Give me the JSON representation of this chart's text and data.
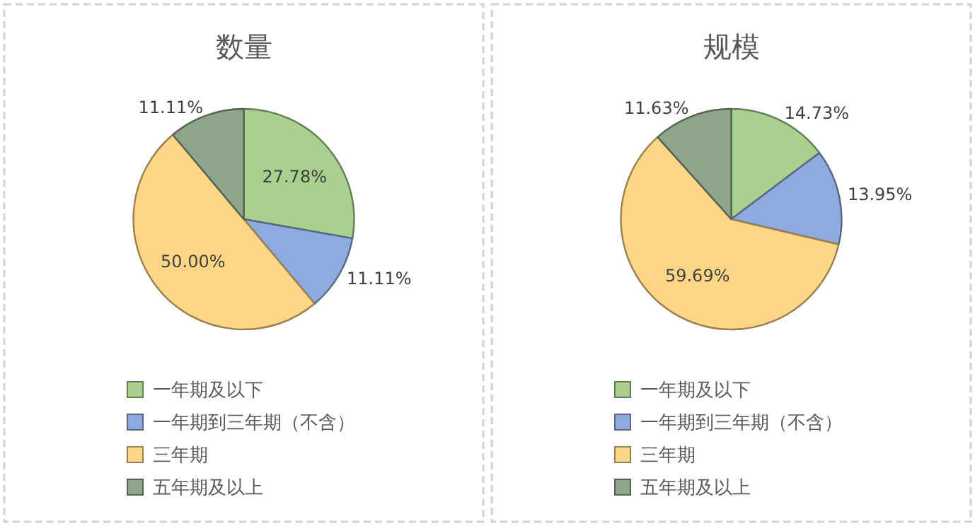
{
  "chart_data": [
    {
      "type": "pie",
      "title": "数量",
      "categories": [
        "一年期及以下",
        "一年期到三年期（不含）",
        "三年期",
        "五年期及以上"
      ],
      "values": [
        27.78,
        11.11,
        50.0,
        11.11
      ],
      "value_labels": [
        "27.78%",
        "11.11%",
        "50.00%",
        "11.11%"
      ],
      "colors": [
        "#a9d18e",
        "#8faadc",
        "#ffd685",
        "#8fa58a"
      ],
      "legend": "bottom"
    },
    {
      "type": "pie",
      "title": "规模",
      "categories": [
        "一年期及以下",
        "一年期到三年期（不含）",
        "三年期",
        "五年期及以上"
      ],
      "values": [
        14.73,
        13.95,
        59.69,
        11.63
      ],
      "value_labels": [
        "14.73%",
        "13.95%",
        "59.69%",
        "11.63%"
      ],
      "colors": [
        "#a9d18e",
        "#8faadc",
        "#ffd685",
        "#8fa58a"
      ],
      "legend": "bottom"
    }
  ]
}
